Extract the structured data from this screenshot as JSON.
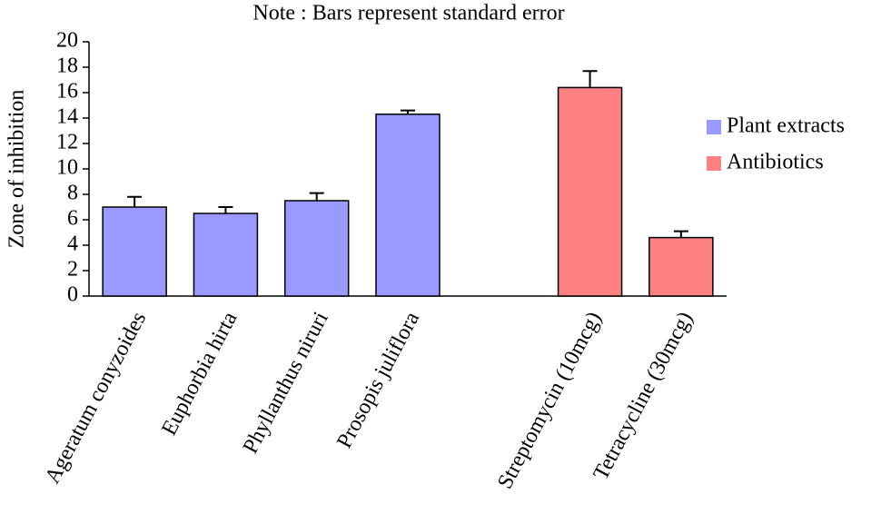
{
  "chart_data": {
    "type": "bar",
    "title": "Note : Bars represent standard error",
    "y_label": "Zone of inhibition",
    "categories": [
      "Ageratum conyzoides",
      "Euphorbia hirta",
      "Phyllanthus niruri",
      "Prosopis juliflora",
      null,
      "Streptomycin (10mcg)",
      "Tetracycline   (30mcg)"
    ],
    "series": [
      {
        "name": "Plant extracts",
        "color": "#9999ff",
        "values": [
          7.0,
          6.5,
          7.5,
          14.3,
          null,
          null,
          null
        ],
        "errors": [
          0.8,
          0.5,
          0.6,
          0.3,
          null,
          null,
          null
        ]
      },
      {
        "name": "Antibiotics",
        "color": "#ff8080",
        "values": [
          null,
          null,
          null,
          null,
          null,
          16.4,
          4.6
        ],
        "errors": [
          null,
          null,
          null,
          null,
          null,
          1.3,
          0.5
        ]
      }
    ],
    "ylim": [
      0,
      20
    ],
    "yticks": [
      0,
      2,
      4,
      6,
      8,
      10,
      12,
      14,
      16,
      18,
      20
    ],
    "legend": "right"
  }
}
